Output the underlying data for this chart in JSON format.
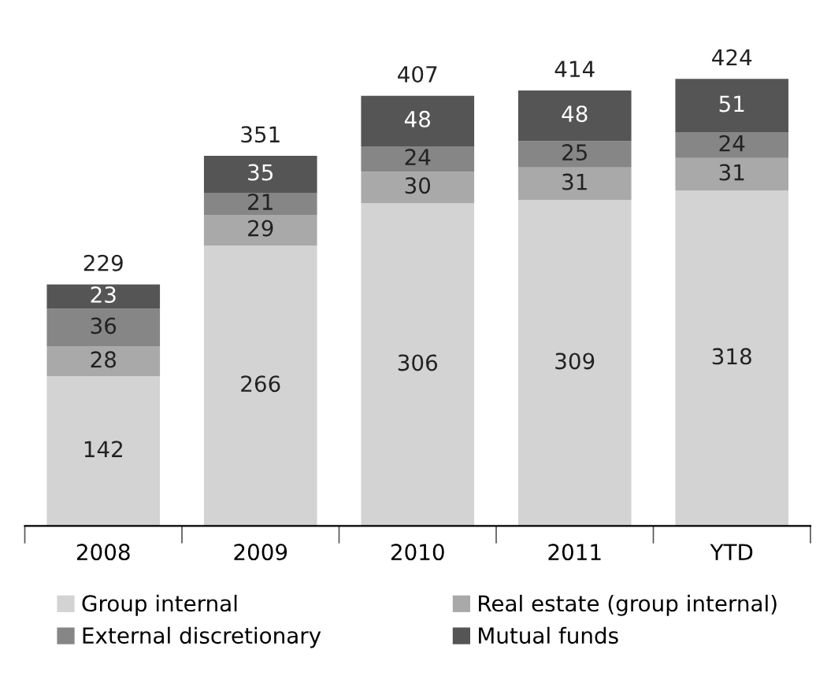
{
  "chart_data": {
    "type": "bar",
    "stacked": true,
    "categories": [
      "2008",
      "2009",
      "2010",
      "2011",
      "YTD"
    ],
    "series": [
      {
        "name": "Group internal",
        "color": "#d3d3d3",
        "values": [
          142,
          266,
          306,
          309,
          318
        ]
      },
      {
        "name": "Real estate (group internal)",
        "color": "#a9a9a9",
        "values": [
          28,
          29,
          30,
          31,
          31
        ]
      },
      {
        "name": "External discretionary",
        "color": "#868686",
        "values": [
          36,
          21,
          24,
          25,
          24
        ]
      },
      {
        "name": "Mutual funds",
        "color": "#555555",
        "values": [
          23,
          35,
          48,
          48,
          51
        ]
      }
    ],
    "totals": [
      "229",
      "351",
      "407",
      "414",
      "424"
    ],
    "data_labels": true,
    "legend": "bottom",
    "grid": false,
    "tick_labels": "x"
  }
}
